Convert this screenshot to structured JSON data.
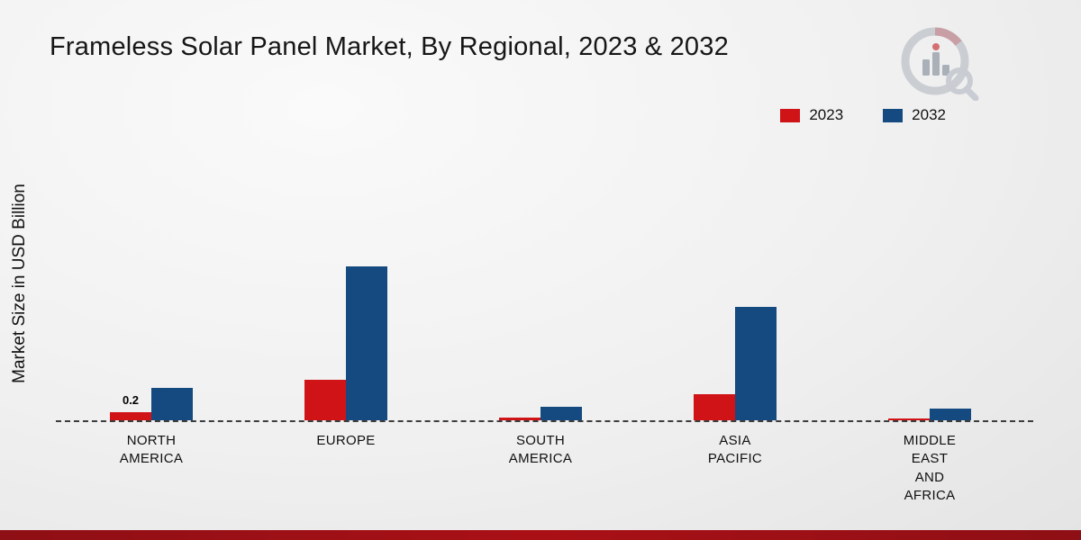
{
  "title": "Frameless Solar Panel Market, By Regional, 2023 & 2032",
  "ylabel": "Market Size in USD Billion",
  "legend": {
    "items": [
      {
        "label": "2023",
        "color": "#d01317"
      },
      {
        "label": "2032",
        "color": "#154a80"
      }
    ]
  },
  "chart_data": {
    "type": "bar",
    "title": "Frameless Solar Panel Market, By Regional, 2023 & 2032",
    "ylabel": "Market Size in USD Billion",
    "xlabel": "",
    "unit": "USD Billion",
    "grid": false,
    "legend_position": "top-right",
    "baseline": 0,
    "ylim": [
      0,
      4.5
    ],
    "categories": [
      "NORTH\nAMERICA",
      "EUROPE",
      "SOUTH\nAMERICA",
      "ASIA\nPACIFIC",
      "MIDDLE\nEAST\nAND\nAFRICA"
    ],
    "series": [
      {
        "name": "2023",
        "color": "#d01317",
        "values": [
          0.2,
          1.0,
          0.07,
          0.65,
          0.05
        ],
        "labels": [
          "0.2",
          "",
          "",
          "",
          ""
        ]
      },
      {
        "name": "2032",
        "color": "#154a80",
        "values": [
          0.8,
          3.8,
          0.33,
          2.8,
          0.3
        ],
        "labels": [
          "",
          "",
          "",
          "",
          ""
        ]
      }
    ]
  },
  "logo": {
    "name": "Market Research Future logo"
  }
}
